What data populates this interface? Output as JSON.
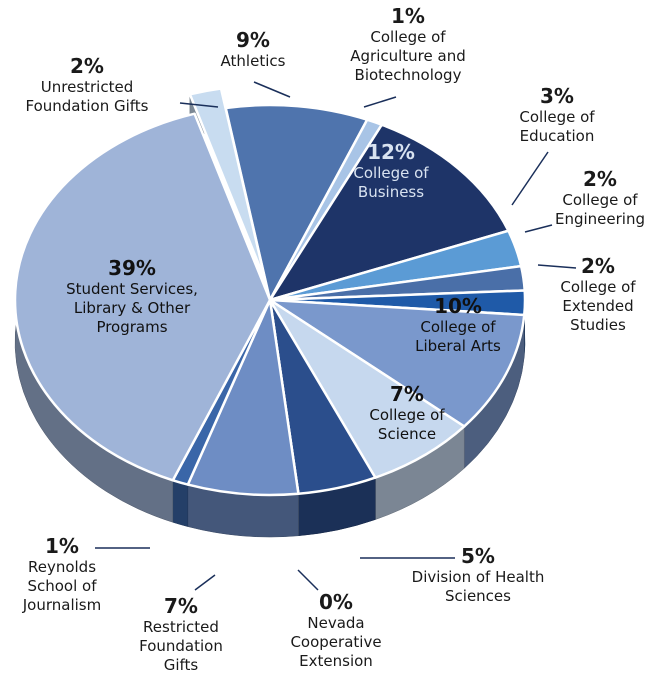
{
  "chart_data": {
    "type": "pie",
    "categories": [
      "Athletics",
      "College of Agriculture and Biotechnology",
      "College of Business",
      "College of Education",
      "College of Engineering",
      "College of Extended Studies",
      "College of Liberal Arts",
      "College of Science",
      "Division of Health Sciences",
      "Nevada Cooperative Extension",
      "Restricted Foundation Gifts",
      "Reynolds School of Journalism",
      "Student Services, Library & Other Programs",
      "Unrestricted Foundation Gifts"
    ],
    "values": [
      9,
      1,
      12,
      3,
      2,
      2,
      10,
      7,
      5,
      0,
      7,
      1,
      39,
      2
    ],
    "value_labels": [
      "9%",
      "1%",
      "12%",
      "3%",
      "2%",
      "2%",
      "10%",
      "7%",
      "5%",
      "0%",
      "7%",
      "1%",
      "39%",
      "2%"
    ],
    "colors": [
      "#4f74ad",
      "#a8c4e6",
      "#1e3468",
      "#5b9bd5",
      "#4a6fa8",
      "#1f5aa8",
      "#7a98cc",
      "#c6d8ee",
      "#2b4e8c",
      "#aac4e0",
      "#6e8dc4",
      "#3a66a8",
      "#9fb4d8",
      "#c8dcf0"
    ]
  }
}
